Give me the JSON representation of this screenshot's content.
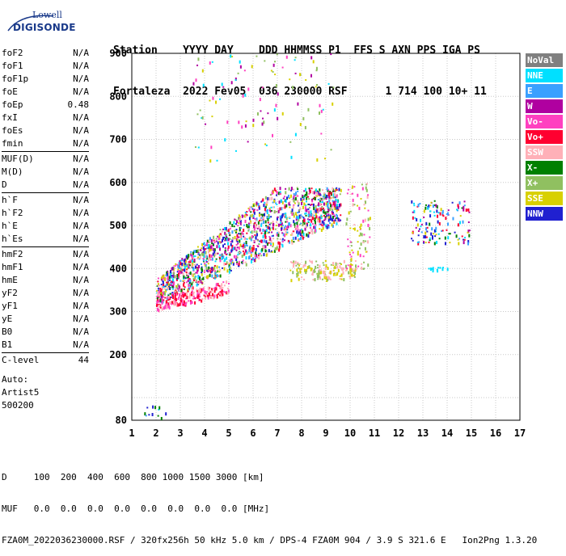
{
  "logo": {
    "line1": "Lowell",
    "line2": "DIGISONDE"
  },
  "header": {
    "row1": "Station    YYYY DAY    DDD HHMMSS P1  FFS S AXN PPS IGA PS",
    "row2": "Fortaleza  2022 Fev05  036 230000 RSF      1 714 100 10+ 11"
  },
  "params": {
    "group1": [
      {
        "name": "foF2",
        "value": "N/A"
      },
      {
        "name": "foF1",
        "value": "N/A"
      },
      {
        "name": "foF1p",
        "value": "N/A"
      },
      {
        "name": "foE",
        "value": "N/A"
      },
      {
        "name": "foEp",
        "value": "0.48"
      },
      {
        "name": "fxI",
        "value": "N/A"
      },
      {
        "name": "foEs",
        "value": "N/A"
      },
      {
        "name": "fmin",
        "value": "N/A"
      }
    ],
    "group2": [
      {
        "name": "MUF(D)",
        "value": "N/A"
      },
      {
        "name": "M(D)",
        "value": "N/A"
      },
      {
        "name": "D",
        "value": "N/A"
      }
    ],
    "group3": [
      {
        "name": "h`F",
        "value": "N/A"
      },
      {
        "name": "h`F2",
        "value": "N/A"
      },
      {
        "name": "h`E",
        "value": "N/A"
      },
      {
        "name": "h`Es",
        "value": "N/A"
      }
    ],
    "group4": [
      {
        "name": "hmF2",
        "value": "N/A"
      },
      {
        "name": "hmF1",
        "value": "N/A"
      },
      {
        "name": "hmE",
        "value": "N/A"
      },
      {
        "name": "yF2",
        "value": "N/A"
      },
      {
        "name": "yF1",
        "value": "N/A"
      },
      {
        "name": "yE",
        "value": "N/A"
      },
      {
        "name": "B0",
        "value": "N/A"
      },
      {
        "name": "B1",
        "value": "N/A"
      }
    ],
    "group5": [
      {
        "name": "C-level",
        "value": "44"
      }
    ],
    "auto": [
      "Auto:",
      "Artist5",
      "500200"
    ]
  },
  "legend": [
    {
      "label": "NoVal",
      "bg": "#808080",
      "fg": "#ffffff"
    },
    {
      "label": "NNE",
      "bg": "#00e0ff",
      "fg": "#ffffff"
    },
    {
      "label": "E",
      "bg": "#3aa0ff",
      "fg": "#ffffff"
    },
    {
      "label": "W",
      "bg": "#b000a0",
      "fg": "#ffffff"
    },
    {
      "label": "Vo-",
      "bg": "#ff40c0",
      "fg": "#ffffff"
    },
    {
      "label": "Vo+",
      "bg": "#ff0030",
      "fg": "#ffffff"
    },
    {
      "label": "SSW",
      "bg": "#ffb0b8",
      "fg": "#ffffff"
    },
    {
      "label": "X-",
      "bg": "#008000",
      "fg": "#ffffff"
    },
    {
      "label": "X+",
      "bg": "#90c060",
      "fg": "#ffffff"
    },
    {
      "label": "SSE",
      "bg": "#d8d000",
      "fg": "#ffffff"
    },
    {
      "label": "NNW",
      "bg": "#2020d0",
      "fg": "#ffffff"
    }
  ],
  "footer": {
    "row1": "D     100  200  400  600  800 1000 1500 3000 [km]",
    "row2": "MUF   0.0  0.0  0.0  0.0  0.0  0.0  0.0  0.0 [MHz]",
    "row3": "FZA0M_2022036230000.RSF / 320fx256h 50 kHz 5.0 km / DPS-4 FZA0M 904 / 3.9 S 321.6 E   Ion2Png 1.3.20"
  },
  "chart_data": {
    "type": "scatter",
    "xlim": [
      1,
      17
    ],
    "ylim": [
      80,
      900
    ],
    "x_ticks": [
      1,
      2,
      3,
      4,
      5,
      6,
      7,
      8,
      9,
      10,
      11,
      12,
      13,
      14,
      15,
      16,
      17
    ],
    "y_ticks": [
      80,
      100,
      200,
      300,
      400,
      500,
      600,
      700,
      800,
      900
    ],
    "grid": true,
    "regions": [
      {
        "name": "low-E",
        "x_range": [
          1.4,
          2.4
        ],
        "y_range": [
          80,
          95
        ],
        "color_mix": [
          "NNE",
          "E",
          "X-",
          "NNW"
        ],
        "density": 12
      },
      {
        "name": "F-trace",
        "x_range": [
          2.0,
          9.6
        ],
        "y_range": [
          305,
          590
        ],
        "color_mix": [
          "W",
          "Vo-",
          "Vo+",
          "SSW",
          "NNE",
          "E",
          "X-",
          "X+",
          "SSE",
          "NNW"
        ],
        "density": 1500
      },
      {
        "name": "F-base",
        "x_range": [
          2.0,
          5.0
        ],
        "y_range": [
          300,
          340
        ],
        "color_mix": [
          "Vo+",
          "Vo-",
          "SSW"
        ],
        "density": 220
      },
      {
        "name": "F-yellow",
        "x_range": [
          7.5,
          10.2
        ],
        "y_range": [
          375,
          420
        ],
        "color_mix": [
          "SSE",
          "X+",
          "SSW"
        ],
        "density": 160
      },
      {
        "name": "F-tail",
        "x_range": [
          9.8,
          10.8
        ],
        "y_range": [
          400,
          600
        ],
        "color_mix": [
          "SSE",
          "X+",
          "SSW",
          "Vo-"
        ],
        "density": 90
      },
      {
        "name": "2nd-hop",
        "x_range": [
          3.5,
          9.3
        ],
        "y_range": [
          650,
          900
        ],
        "color_mix": [
          "SSE",
          "X+",
          "W",
          "Vo-",
          "NNE"
        ],
        "density": 110
      },
      {
        "name": "far-cluster",
        "x_range": [
          12.5,
          14.9
        ],
        "y_range": [
          460,
          560
        ],
        "color_mix": [
          "NNE",
          "E",
          "W",
          "NNW",
          "X-",
          "SSE",
          "Vo+"
        ],
        "density": 140
      },
      {
        "name": "far-line",
        "x_range": [
          13.0,
          14.0
        ],
        "y_range": [
          398,
          404
        ],
        "color_mix": [
          "NNE"
        ],
        "density": 14
      }
    ]
  }
}
